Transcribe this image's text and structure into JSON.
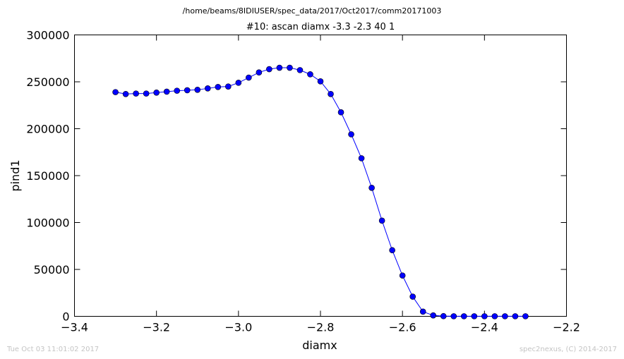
{
  "page": {
    "path_title": "/home/beams/8IDIUSER/spec_data/2017/Oct2017/comm20171003",
    "footer_left": "Tue Oct 03 11:01:02 2017",
    "footer_right": "spec2nexus, (C) 2014-2017"
  },
  "chart_data": {
    "type": "line",
    "title": "#10: ascan  diamx -3.3 -2.3  40 1",
    "xlabel": "diamx",
    "ylabel": "pind1",
    "xlim": [
      -3.4,
      -2.2
    ],
    "ylim": [
      0,
      300000
    ],
    "x_ticks": [
      -3.4,
      -3.2,
      -3.0,
      -2.8,
      -2.6,
      -2.4,
      -2.2
    ],
    "x_tick_labels": [
      "−3.4",
      "−3.2",
      "−3.0",
      "−2.8",
      "−2.6",
      "−2.4",
      "−2.2"
    ],
    "y_ticks": [
      0,
      50000,
      100000,
      150000,
      200000,
      250000,
      300000
    ],
    "y_tick_labels": [
      "0",
      "50000",
      "100000",
      "150000",
      "200000",
      "250000",
      "300000"
    ],
    "grid": false,
    "legend": false,
    "marker": "circle",
    "color": "#0000ff",
    "series": [
      {
        "x": [
          -3.3,
          -3.275,
          -3.25,
          -3.225,
          -3.2,
          -3.175,
          -3.15,
          -3.125,
          -3.1,
          -3.075,
          -3.05,
          -3.025,
          -3.0,
          -2.975,
          -2.95,
          -2.925,
          -2.9,
          -2.875,
          -2.85,
          -2.825,
          -2.8,
          -2.775,
          -2.75,
          -2.725,
          -2.7,
          -2.675,
          -2.65,
          -2.625,
          -2.6,
          -2.575,
          -2.55,
          -2.525,
          -2.5,
          -2.475,
          -2.45,
          -2.425,
          -2.4,
          -2.375,
          -2.35,
          -2.325,
          -2.3
        ],
        "y": [
          239000,
          237000,
          237500,
          237500,
          238500,
          239500,
          240500,
          241000,
          241500,
          243000,
          244500,
          245000,
          249000,
          254500,
          260000,
          263500,
          265000,
          265000,
          262500,
          258000,
          250500,
          237000,
          217500,
          194000,
          168500,
          137000,
          102000,
          70500,
          43500,
          21000,
          5000,
          1000,
          200,
          100,
          100,
          100,
          100,
          100,
          100,
          100,
          100
        ]
      }
    ]
  }
}
